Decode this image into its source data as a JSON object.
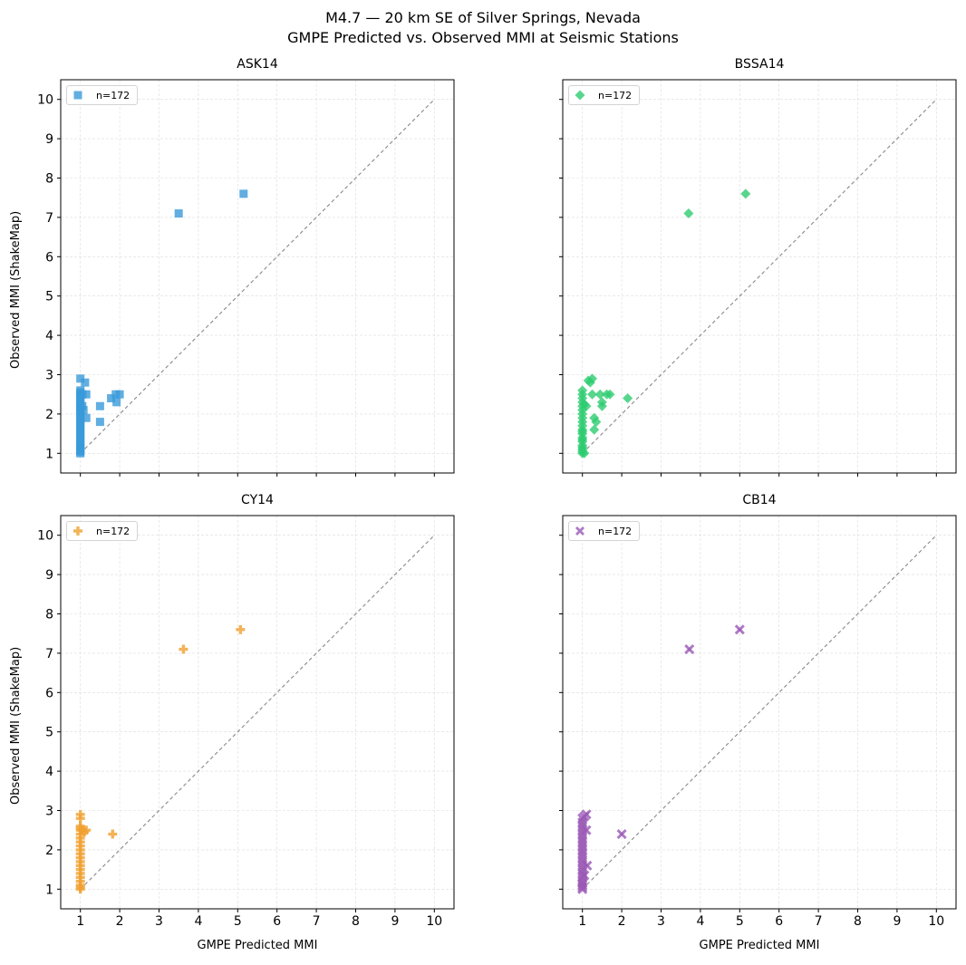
{
  "figure": {
    "suptitle_line1": "M4.7 — 20 km SE of Silver Springs, Nevada",
    "suptitle_line2": "GMPE Predicted vs. Observed MMI at Seismic Stations"
  },
  "chart_data": [
    {
      "type": "scatter",
      "title": "ASK14",
      "xlabel": "",
      "ylabel": "Observed MMI (ShakeMap)",
      "xlim": [
        0.5,
        10.5
      ],
      "ylim": [
        0.5,
        10.5
      ],
      "ticks": [
        1,
        2,
        3,
        4,
        5,
        6,
        7,
        8,
        9,
        10
      ],
      "show_x_tick_labels": false,
      "show_y_tick_labels": true,
      "grid": true,
      "legend": {
        "placement": "top-left",
        "label": "n=172"
      },
      "reference_line": {
        "style": "dashed",
        "from": [
          1,
          1
        ],
        "to": [
          10,
          10
        ],
        "color": "#888888"
      },
      "series": [
        {
          "marker": "square",
          "color": "#3a9ad9",
          "x": [
            1.0,
            1.0,
            1.0,
            1.0,
            1.0,
            1.0,
            1.0,
            1.0,
            1.0,
            1.0,
            1.0,
            1.0,
            1.0,
            1.0,
            1.0,
            1.0,
            1.0,
            1.0,
            1.0,
            1.0,
            1.0,
            1.0,
            1.0,
            1.0,
            1.0,
            1.0,
            1.0,
            1.0,
            1.0,
            1.0,
            1.05,
            1.08,
            1.05,
            1.12,
            1.15,
            1.15,
            1.5,
            1.5,
            1.78,
            1.9,
            1.92,
            2.0,
            3.5,
            5.15
          ],
          "y": [
            1.0,
            1.05,
            1.1,
            1.2,
            1.3,
            1.4,
            1.5,
            1.6,
            1.7,
            1.8,
            1.9,
            2.0,
            2.05,
            2.1,
            2.15,
            2.2,
            2.3,
            2.4,
            2.5,
            2.55,
            2.6,
            2.9,
            1.05,
            1.25,
            1.45,
            1.65,
            1.85,
            2.25,
            2.45,
            1.15,
            2.2,
            2.1,
            2.5,
            2.8,
            2.5,
            1.9,
            2.2,
            1.8,
            2.4,
            2.5,
            2.3,
            2.5,
            7.1,
            7.6
          ]
        }
      ]
    },
    {
      "type": "scatter",
      "title": "BSSA14",
      "xlabel": "",
      "ylabel": "",
      "xlim": [
        0.5,
        10.5
      ],
      "ylim": [
        0.5,
        10.5
      ],
      "ticks": [
        1,
        2,
        3,
        4,
        5,
        6,
        7,
        8,
        9,
        10
      ],
      "show_x_tick_labels": false,
      "show_y_tick_labels": false,
      "grid": true,
      "legend": {
        "placement": "top-left",
        "label": "n=172"
      },
      "reference_line": {
        "style": "dashed",
        "from": [
          1,
          1
        ],
        "to": [
          10,
          10
        ],
        "color": "#888888"
      },
      "series": [
        {
          "marker": "diamond",
          "color": "#2ecc71",
          "x": [
            1.0,
            1.0,
            1.0,
            1.0,
            1.0,
            1.0,
            1.0,
            1.0,
            1.0,
            1.0,
            1.0,
            1.0,
            1.0,
            1.0,
            1.0,
            1.0,
            1.0,
            1.0,
            1.0,
            1.0,
            1.0,
            1.05,
            1.05,
            1.1,
            1.15,
            1.2,
            1.25,
            1.25,
            1.3,
            1.35,
            1.3,
            1.45,
            1.5,
            1.5,
            1.62,
            1.7,
            2.15,
            3.7,
            5.15
          ],
          "y": [
            1.0,
            1.05,
            1.1,
            1.2,
            1.3,
            1.4,
            1.5,
            1.6,
            1.7,
            1.8,
            1.9,
            2.0,
            2.1,
            2.2,
            2.3,
            2.4,
            2.5,
            2.6,
            1.15,
            1.35,
            1.55,
            2.25,
            1.0,
            2.2,
            2.85,
            2.8,
            2.5,
            2.9,
            1.9,
            1.8,
            1.6,
            2.5,
            2.3,
            2.2,
            2.5,
            2.5,
            2.4,
            7.1,
            7.6
          ]
        }
      ]
    },
    {
      "type": "scatter",
      "title": "CY14",
      "xlabel": "GMPE Predicted MMI",
      "ylabel": "Observed MMI (ShakeMap)",
      "xlim": [
        0.5,
        10.5
      ],
      "ylim": [
        0.5,
        10.5
      ],
      "ticks": [
        1,
        2,
        3,
        4,
        5,
        6,
        7,
        8,
        9,
        10
      ],
      "show_x_tick_labels": true,
      "show_y_tick_labels": true,
      "grid": true,
      "legend": {
        "placement": "top-left",
        "label": "n=172"
      },
      "reference_line": {
        "style": "dashed",
        "from": [
          1,
          1
        ],
        "to": [
          10,
          10
        ],
        "color": "#888888"
      },
      "series": [
        {
          "marker": "plus",
          "color": "#f0a030",
          "x": [
            1.0,
            1.0,
            1.0,
            1.0,
            1.0,
            1.0,
            1.0,
            1.0,
            1.0,
            1.0,
            1.0,
            1.0,
            1.0,
            1.0,
            1.0,
            1.0,
            1.0,
            1.0,
            1.0,
            1.0,
            1.0,
            1.05,
            1.1,
            1.15,
            1.82,
            3.62,
            5.07
          ],
          "y": [
            1.0,
            1.05,
            1.1,
            1.2,
            1.3,
            1.4,
            1.5,
            1.6,
            1.7,
            1.8,
            1.9,
            2.0,
            2.1,
            2.2,
            2.3,
            2.4,
            2.5,
            2.6,
            2.8,
            2.9,
            2.55,
            2.5,
            2.45,
            2.5,
            2.4,
            7.1,
            7.6
          ]
        }
      ]
    },
    {
      "type": "scatter",
      "title": "CB14",
      "xlabel": "GMPE Predicted MMI",
      "ylabel": "",
      "xlim": [
        0.5,
        10.5
      ],
      "ylim": [
        0.5,
        10.5
      ],
      "ticks": [
        1,
        2,
        3,
        4,
        5,
        6,
        7,
        8,
        9,
        10
      ],
      "show_x_tick_labels": true,
      "show_y_tick_labels": false,
      "grid": true,
      "legend": {
        "placement": "top-left",
        "label": "n=172"
      },
      "reference_line": {
        "style": "dashed",
        "from": [
          1,
          1
        ],
        "to": [
          10,
          10
        ],
        "color": "#888888"
      },
      "series": [
        {
          "marker": "x",
          "color": "#9b59b6",
          "x": [
            1.0,
            1.0,
            1.0,
            1.0,
            1.0,
            1.0,
            1.0,
            1.0,
            1.0,
            1.0,
            1.0,
            1.0,
            1.0,
            1.0,
            1.0,
            1.0,
            1.0,
            1.0,
            1.0,
            1.0,
            1.0,
            1.05,
            1.05,
            1.1,
            1.1,
            1.12,
            2.0,
            3.72,
            5.0
          ],
          "y": [
            1.0,
            1.05,
            1.1,
            1.2,
            1.3,
            1.4,
            1.5,
            1.6,
            1.7,
            1.8,
            1.9,
            2.0,
            2.1,
            2.2,
            2.3,
            2.4,
            2.5,
            2.6,
            2.7,
            2.8,
            1.15,
            2.85,
            1.35,
            2.9,
            2.5,
            1.6,
            2.4,
            7.1,
            7.6
          ]
        }
      ]
    }
  ]
}
